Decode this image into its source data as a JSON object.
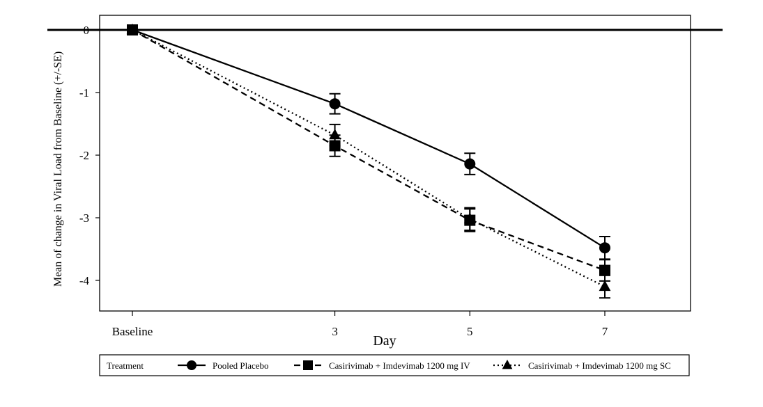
{
  "chart_data": {
    "type": "line",
    "xlabel": "Day",
    "ylabel": "Mean of change in Viral Load from Baseline (+/-SE)",
    "categories": [
      "Baseline",
      "3",
      "5",
      "7"
    ],
    "x": [
      0,
      3,
      5,
      7
    ],
    "ylim": [
      -4.5,
      0.2
    ],
    "yticks": [
      0,
      -1,
      -2,
      -3,
      -4
    ],
    "reference_line_y": 0,
    "grid": false,
    "legend_position": "bottom",
    "legend_title": "Treatment",
    "series": [
      {
        "name": "Pooled Placebo",
        "marker": "circle",
        "line_style": "solid",
        "values": [
          0,
          -1.18,
          -2.14,
          -3.48
        ],
        "se": [
          0,
          0.16,
          0.17,
          0.18
        ]
      },
      {
        "name": "Casirivimab + Imdevimab 1200 mg IV",
        "marker": "square",
        "line_style": "dashed",
        "values": [
          0,
          -1.85,
          -3.04,
          -3.84
        ],
        "se": [
          0,
          0.17,
          0.18,
          0.17
        ]
      },
      {
        "name": "Casirivimab + Imdevimab 1200 mg SC",
        "marker": "triangle",
        "line_style": "dotted",
        "values": [
          0,
          -1.68,
          -3.02,
          -4.1
        ],
        "se": [
          0,
          0.17,
          0.18,
          0.18
        ]
      }
    ]
  }
}
